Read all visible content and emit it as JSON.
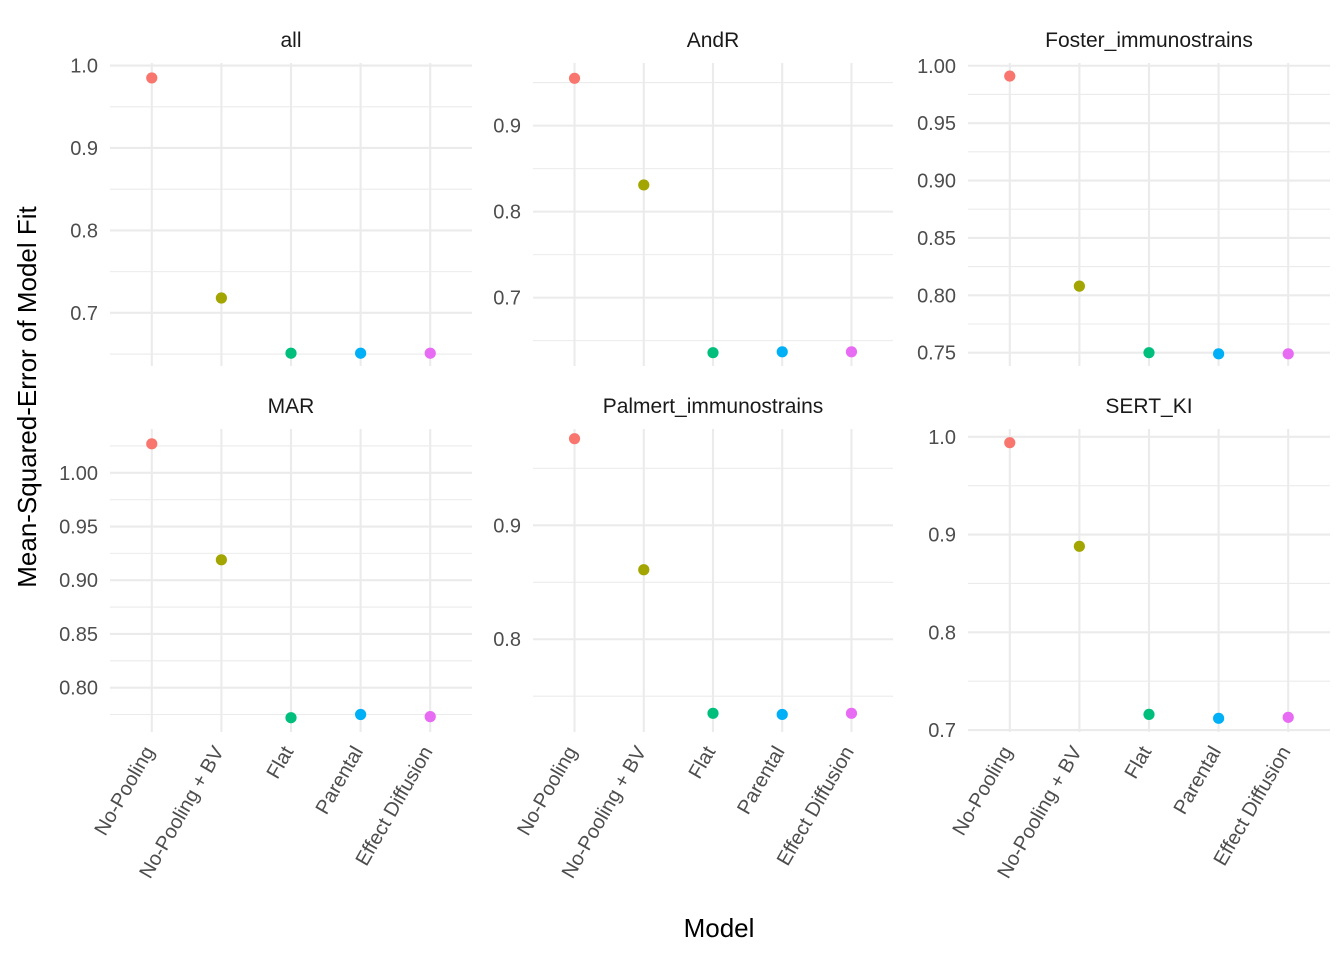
{
  "chart_data": {
    "type": "scatter",
    "xlabel": "Model",
    "ylabel": "Mean-Squared-Error of Model Fit",
    "categories": [
      "No-Pooling",
      "No-Pooling + BV",
      "Flat",
      "Parental",
      "Effect Diffusion"
    ],
    "colors": [
      "#F8766D",
      "#A3A500",
      "#00BF7D",
      "#00B0F6",
      "#E76BF3"
    ],
    "panels": [
      {
        "title": "all",
        "ylim": [
          0.6355,
          1.0031
        ],
        "yticks": [
          "0.7",
          "0.8",
          "0.9",
          "1.0"
        ],
        "ytick_values": [
          0.7,
          0.8,
          0.9,
          1.0
        ],
        "values": [
          0.985,
          0.718,
          0.651,
          0.651,
          0.651
        ]
      },
      {
        "title": "AndR",
        "ylim": [
          0.6205,
          0.9728
        ],
        "yticks": [
          "0.7",
          "0.8",
          "0.9"
        ],
        "ytick_values": [
          0.7,
          0.8,
          0.9
        ],
        "values": [
          0.955,
          0.831,
          0.636,
          0.637,
          0.637
        ]
      },
      {
        "title": "Foster_immunostrains",
        "ylim": [
          0.7384,
          1.0024
        ],
        "yticks": [
          "0.75",
          "0.80",
          "0.85",
          "0.90",
          "0.95",
          "1.00"
        ],
        "ytick_values": [
          0.75,
          0.8,
          0.85,
          0.9,
          0.95,
          1.0
        ],
        "values": [
          0.991,
          0.808,
          0.75,
          0.749,
          0.749
        ]
      },
      {
        "title": "MAR",
        "ylim": [
          0.7587,
          1.0408
        ],
        "yticks": [
          "0.80",
          "0.85",
          "0.90",
          "0.95",
          "1.00"
        ],
        "ytick_values": [
          0.8,
          0.85,
          0.9,
          0.95,
          1.0
        ],
        "values": [
          1.027,
          0.919,
          0.772,
          0.775,
          0.773
        ]
      },
      {
        "title": "Palmert_immunostrains",
        "ylim": [
          0.7186,
          0.9845
        ],
        "yticks": [
          "0.8",
          "0.9"
        ],
        "ytick_values": [
          0.8,
          0.9
        ],
        "values": [
          0.976,
          0.861,
          0.735,
          0.734,
          0.735
        ]
      },
      {
        "title": "SERT_KI",
        "ylim": [
          0.698,
          1.008
        ],
        "yticks": [
          "0.7",
          "0.8",
          "0.9",
          "1.0"
        ],
        "ytick_values": [
          0.7,
          0.8,
          0.9,
          1.0
        ],
        "values": [
          0.994,
          0.888,
          0.716,
          0.712,
          0.713
        ]
      }
    ]
  }
}
